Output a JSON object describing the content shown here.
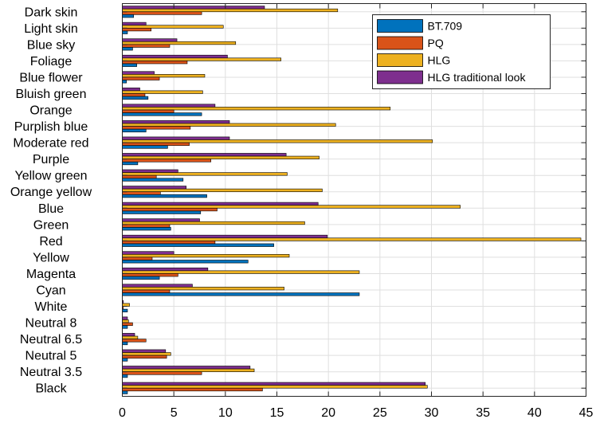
{
  "chart_data": {
    "type": "bar",
    "orientation": "horizontal",
    "categories": [
      "Dark skin",
      "Light skin",
      "Blue sky",
      "Foliage",
      "Blue flower",
      "Bluish green",
      "Orange",
      "Purplish blue",
      "Moderate red",
      "Purple",
      "Yellow green",
      "Orange yellow",
      "Blue",
      "Green",
      "Red",
      "Yellow",
      "Magenta",
      "Cyan",
      "White",
      "Neutral 8",
      "Neutral 6.5",
      "Neutral 5",
      "Neutral 3.5",
      "Black"
    ],
    "series": [
      {
        "name": "BT.709",
        "color": "#0072BD",
        "values": [
          1.1,
          0.5,
          1.0,
          1.4,
          0.4,
          2.5,
          7.7,
          2.3,
          4.4,
          1.5,
          5.9,
          8.2,
          7.6,
          4.7,
          14.7,
          12.2,
          3.6,
          23.0,
          0.5,
          0.5,
          0.5,
          0.5,
          0.5,
          0.5
        ]
      },
      {
        "name": "PQ",
        "color": "#D95319",
        "values": [
          7.7,
          2.8,
          4.6,
          6.3,
          3.6,
          2.2,
          5.0,
          6.6,
          6.5,
          8.6,
          3.3,
          3.7,
          9.2,
          4.6,
          9.0,
          2.9,
          5.4,
          4.6,
          0.1,
          1.0,
          2.3,
          4.3,
          7.7,
          13.6
        ]
      },
      {
        "name": "HLG",
        "color": "#EDB120",
        "values": [
          20.9,
          9.8,
          11.0,
          15.4,
          8.0,
          7.8,
          26.0,
          20.7,
          30.1,
          19.1,
          16.0,
          19.4,
          32.8,
          17.7,
          44.5,
          16.2,
          23.0,
          15.7,
          0.7,
          0.6,
          1.5,
          4.7,
          12.8,
          29.6
        ]
      },
      {
        "name": "HLG traditional look",
        "color": "#7E2F8E",
        "values": [
          13.8,
          2.3,
          5.3,
          10.2,
          3.1,
          1.7,
          9.0,
          10.4,
          10.4,
          15.9,
          5.4,
          6.2,
          19.0,
          7.5,
          19.9,
          5.0,
          8.3,
          6.8,
          0.1,
          0.5,
          1.2,
          4.2,
          12.4,
          29.4
        ]
      }
    ],
    "xlim": [
      0,
      45
    ],
    "xticks": [
      0,
      5,
      10,
      15,
      20,
      25,
      30,
      35,
      40,
      45
    ],
    "grid": true,
    "legend": "top-right"
  }
}
